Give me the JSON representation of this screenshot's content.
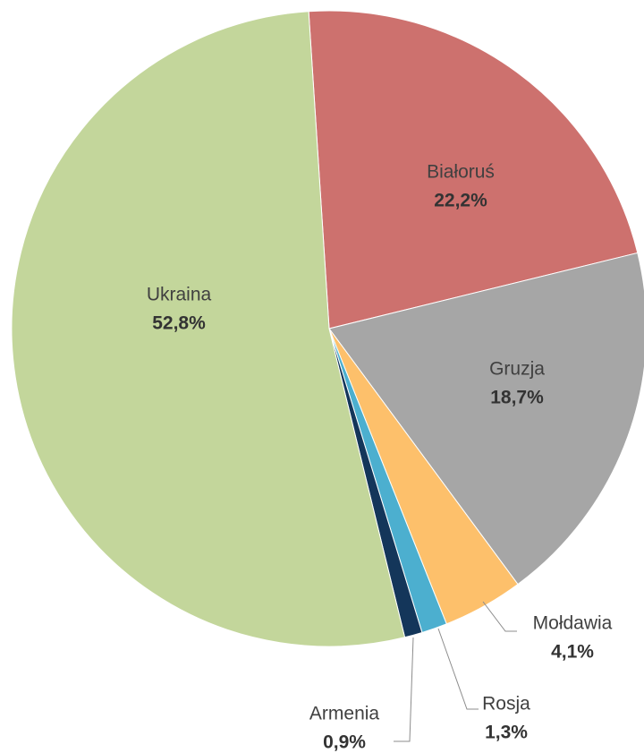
{
  "chart_data": {
    "type": "pie",
    "categories": [
      "Białoruś",
      "Gruzja",
      "Mołdawia",
      "Rosja",
      "Armenia",
      "Ukraina"
    ],
    "values": [
      22.2,
      18.7,
      4.1,
      1.3,
      0.9,
      52.8
    ],
    "value_labels": [
      "22,2%",
      "18,7%",
      "4,1%",
      "1,3%",
      "0,9%",
      "52,8%"
    ],
    "colors": [
      "#cd716e",
      "#a6a6a6",
      "#fdc06b",
      "#4cafcf",
      "#14365a",
      "#c3d69b"
    ]
  }
}
